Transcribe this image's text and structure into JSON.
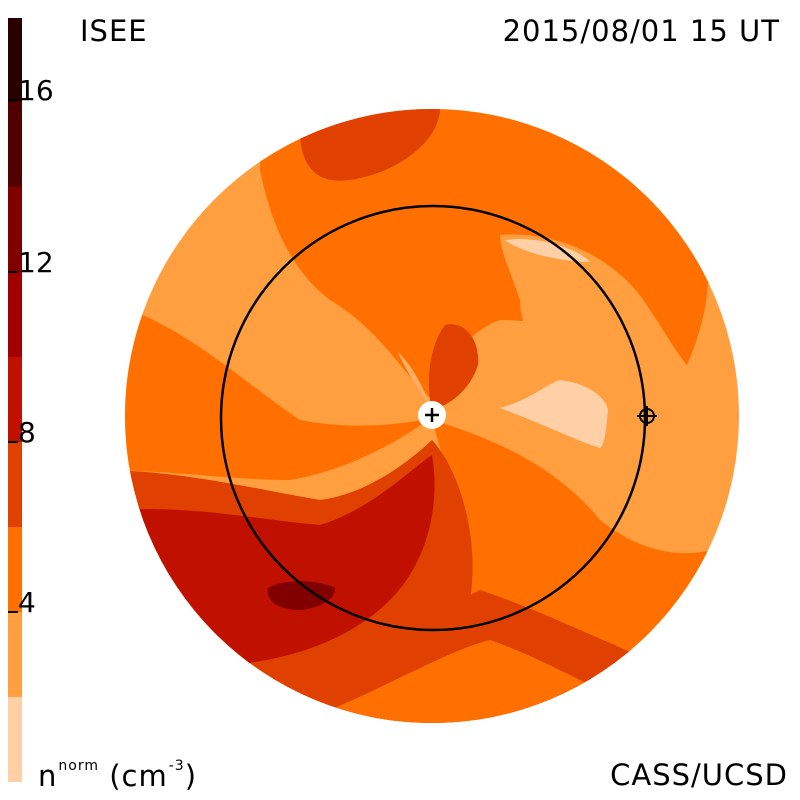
{
  "header": {
    "source_label": "ISEE",
    "timestamp": "2015/08/01 15 UT"
  },
  "footer": {
    "credit": "CASS/UCSD"
  },
  "colorbar": {
    "quantity_base": "n",
    "quantity_superscript": "norm",
    "unit_text": "(cm",
    "unit_exponent": "-3",
    "unit_close": ")",
    "ticks": [
      {
        "value": "16"
      },
      {
        "value": "12"
      },
      {
        "value": "8"
      },
      {
        "value": "4"
      }
    ],
    "value_range": [
      0,
      18
    ],
    "colors": [
      "#ffcfa6",
      "#ff9f40",
      "#ff7000",
      "#e04000",
      "#c01000",
      "#a00000",
      "#800000",
      "#500000",
      "#280000"
    ]
  },
  "map": {
    "sun_marker": "sun-center-plus-icon",
    "earth_marker": "earth-crosshair-icon",
    "orbit": "earth-orbit-circle"
  }
}
